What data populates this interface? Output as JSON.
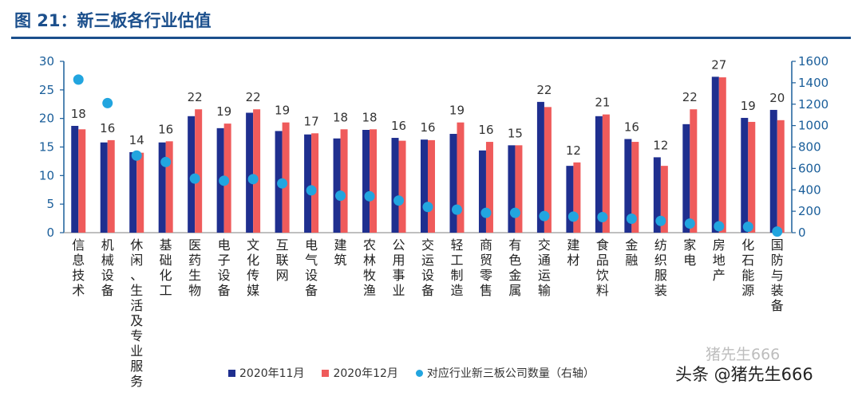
{
  "title": "图 21：新三板各行业估值",
  "colors": {
    "nov": "#1f2f8f",
    "dec": "#ef5b5b",
    "count": "#22a5df",
    "axis": "#1a5e9a",
    "title": "#1b4f8c"
  },
  "legend": {
    "nov": "2020年11月",
    "dec": "2020年12月",
    "count": "对应行业新三板公司数量（右轴）"
  },
  "watermark": {
    "top": "猪先生666",
    "main": "头条 @猪先生666"
  },
  "chart_data": {
    "type": "bar",
    "categories": [
      "信息技术",
      "机械设备",
      "休闲、生活及专业服务",
      "基础化工",
      "医药生物",
      "电子设备",
      "文化传媒",
      "互联网",
      "电气设备",
      "建筑",
      "农林牧渔",
      "公用事业",
      "交运设备",
      "轻工制造",
      "商贸零售",
      "有色金属",
      "交通运输",
      "建材",
      "食品饮料",
      "金融",
      "纺织服装",
      "家电",
      "房地产",
      "化石能源",
      "国防与装备"
    ],
    "series": [
      {
        "name": "2020年11月",
        "axis": "left",
        "values": [
          18.7,
          15.8,
          14.1,
          15.8,
          20.4,
          18.3,
          21.0,
          17.8,
          17.2,
          16.5,
          18.0,
          16.6,
          16.3,
          17.3,
          14.4,
          15.3,
          22.9,
          11.7,
          20.4,
          16.4,
          13.2,
          19.0,
          27.3,
          20.1,
          21.5
        ]
      },
      {
        "name": "2020年12月",
        "axis": "left",
        "values": [
          18.1,
          16.2,
          14.0,
          16.0,
          21.6,
          19.1,
          21.6,
          19.3,
          17.4,
          18.1,
          18.1,
          16.1,
          16.2,
          19.3,
          15.9,
          15.3,
          22.0,
          12.3,
          20.7,
          15.9,
          11.7,
          21.6,
          27.2,
          19.4,
          19.7
        ]
      },
      {
        "name": "对应行业新三板公司数量（右轴）",
        "axis": "right",
        "type": "scatter",
        "values": [
          1430,
          1210,
          720,
          660,
          505,
          485,
          500,
          460,
          395,
          345,
          340,
          300,
          240,
          215,
          185,
          185,
          155,
          150,
          145,
          130,
          110,
          85,
          60,
          55,
          10
        ]
      }
    ],
    "data_labels": [
      "18",
      "16",
      "14",
      "16",
      "22",
      "19",
      "22",
      "19",
      "17",
      "18",
      "18",
      "16",
      "16",
      "19",
      "16",
      "15",
      "22",
      "12",
      "21",
      "16",
      "12",
      "22",
      "27",
      "19",
      "20"
    ],
    "ylim": [
      0,
      30
    ],
    "yticks": [
      0,
      5,
      10,
      15,
      20,
      25,
      30
    ],
    "y2lim": [
      0,
      1600
    ],
    "y2ticks": [
      0,
      200,
      400,
      600,
      800,
      1000,
      1200,
      1400,
      1600
    ],
    "legend_position": "bottom"
  }
}
